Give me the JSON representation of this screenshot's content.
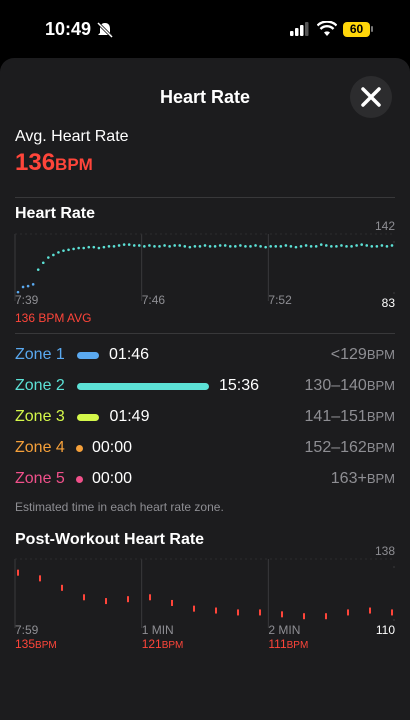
{
  "status_bar": {
    "time": "10:49",
    "battery": "60"
  },
  "header": {
    "title": "Heart Rate"
  },
  "summary": {
    "label": "Avg. Heart Rate",
    "value": "136",
    "unit": "BPM"
  },
  "heart_rate_chart": {
    "title": "Heart Rate",
    "color": "#5ce1d6",
    "ylim": [
      83,
      142
    ],
    "yticks": [
      83,
      142
    ],
    "xlabels": [
      "7:39",
      "7:46",
      "7:52"
    ],
    "average_label": "136 BPM AVG",
    "values": [
      84,
      90,
      91,
      93,
      110,
      118,
      124,
      127,
      130,
      132,
      133,
      134,
      135,
      135,
      136,
      136,
      135,
      136,
      137,
      137,
      138,
      139,
      139,
      138,
      138,
      137,
      138,
      137,
      137,
      138,
      137,
      138,
      138,
      137,
      136,
      137,
      137,
      138,
      137,
      137,
      138,
      138,
      137,
      137,
      138,
      137,
      137,
      138,
      137,
      136,
      137,
      137,
      137,
      138,
      137,
      136,
      137,
      138,
      137,
      137,
      139,
      138,
      137,
      137,
      138,
      137,
      137,
      138,
      139,
      138,
      137,
      137,
      138,
      137,
      138
    ]
  },
  "zones": [
    {
      "name": "Zone 1",
      "time": "01:46",
      "range": "<129",
      "unit": "BPM",
      "color": "#5aa9f0"
    },
    {
      "name": "Zone 2",
      "time": "15:36",
      "range": "130–140",
      "unit": "BPM",
      "color": "#5ce1d6"
    },
    {
      "name": "Zone 3",
      "time": "01:49",
      "range": "141–151",
      "unit": "BPM",
      "color": "#d4f74a"
    },
    {
      "name": "Zone 4",
      "time": "00:00",
      "range": "152–162",
      "unit": "BPM",
      "color": "#f5a03a"
    },
    {
      "name": "Zone 5",
      "time": "00:00",
      "range": "163+",
      "unit": "BPM",
      "color": "#f0508a"
    }
  ],
  "zones_note": "Estimated time in each heart rate zone.",
  "post_workout_chart": {
    "title": "Post-Workout Heart Rate",
    "color": "#ff453a",
    "ylim": [
      110,
      138
    ],
    "yticks": [
      110,
      138
    ],
    "values": [
      135,
      132,
      127,
      122,
      120,
      121,
      122,
      119,
      116,
      115,
      114,
      114,
      113,
      112,
      112,
      114,
      115,
      114
    ],
    "markers": [
      {
        "label": "7:59",
        "value": "135",
        "unit": "BPM"
      },
      {
        "label": "1 MIN",
        "value": "121",
        "unit": "BPM"
      },
      {
        "label": "2 MIN",
        "value": "111",
        "unit": "BPM"
      }
    ]
  }
}
